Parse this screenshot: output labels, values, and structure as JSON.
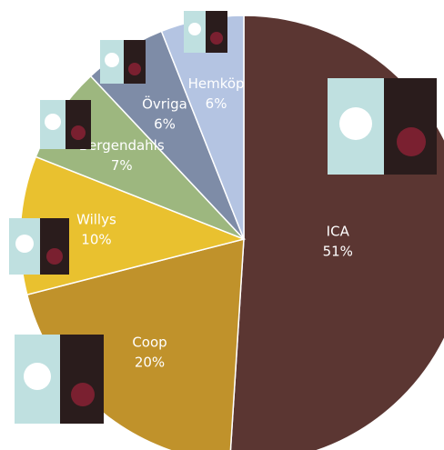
{
  "chart_data": {
    "type": "pie",
    "categories": [
      "ICA",
      "Coop",
      "Willys",
      "Bergendahls",
      "Övriga",
      "Hemköp"
    ],
    "values": [
      51,
      20,
      10,
      7,
      6,
      6
    ],
    "value_labels": [
      "51%",
      "20%",
      "10%",
      "7%",
      "6%",
      "6%"
    ],
    "colors": [
      "#5b3632",
      "#c0922b",
      "#e9c12f",
      "#9db77f",
      "#7e8ca7",
      "#b4c4e2"
    ]
  }
}
